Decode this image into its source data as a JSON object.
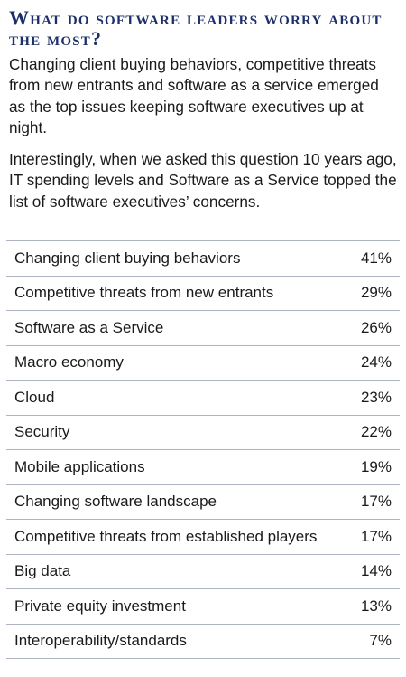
{
  "title": "What do software leaders worry about the most?",
  "paragraphs": [
    "Changing client buying behaviors, competitive threats from new entrants and software as a service emerged as the top issues keeping software executives up at night.",
    "Interestingly, when we asked this question 10 years ago, IT spending levels and Software as a Service topped the list of software executives’ concerns."
  ],
  "table": {
    "rows": [
      {
        "label": "Changing client buying behaviors",
        "value": "41%"
      },
      {
        "label": "Competitive threats from new entrants",
        "value": "29%"
      },
      {
        "label": "Software as a Service",
        "value": "26%"
      },
      {
        "label": "Macro economy",
        "value": "24%"
      },
      {
        "label": "Cloud",
        "value": "23%"
      },
      {
        "label": "Security",
        "value": "22%"
      },
      {
        "label": "Mobile applications",
        "value": "19%"
      },
      {
        "label": "Changing software landscape",
        "value": "17%"
      },
      {
        "label": "Competitive threats from established players",
        "value": "17%"
      },
      {
        "label": "Big data",
        "value": "14%"
      },
      {
        "label": "Private equity investment",
        "value": "13%"
      },
      {
        "label": "Interoperability/standards",
        "value": "7%"
      }
    ]
  },
  "colors": {
    "title": "#1d2f6b",
    "text": "#1a1a1a",
    "rule": "#aeb4c2"
  }
}
